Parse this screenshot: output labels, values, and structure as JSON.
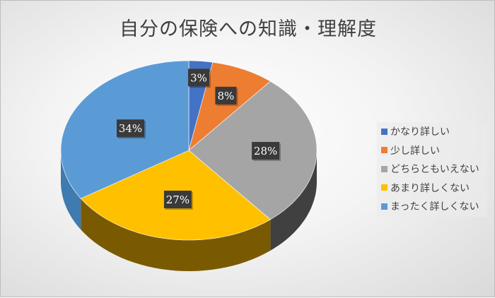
{
  "chart_data": {
    "type": "pie",
    "style": "3d",
    "title": "自分の保険への知識・理解度",
    "categories": [
      "かなり詳しい",
      "少し詳しい",
      "どちらともいえない",
      "あまり詳しくない",
      "まったく詳しくない"
    ],
    "values": [
      3,
      8,
      28,
      27,
      34
    ],
    "data_labels": [
      "3%",
      "8%",
      "28%",
      "27%",
      "34%"
    ],
    "colors": [
      "#4472C4",
      "#ED7D31",
      "#A5A5A5",
      "#FFC000",
      "#5B9BD5"
    ],
    "side_colors": [
      "#2f5597",
      "#a9561f",
      "#404040",
      "#7a5a00",
      "#3f7ab0"
    ],
    "legend_position": "right",
    "start_angle": "12 o'clock, clockwise"
  }
}
